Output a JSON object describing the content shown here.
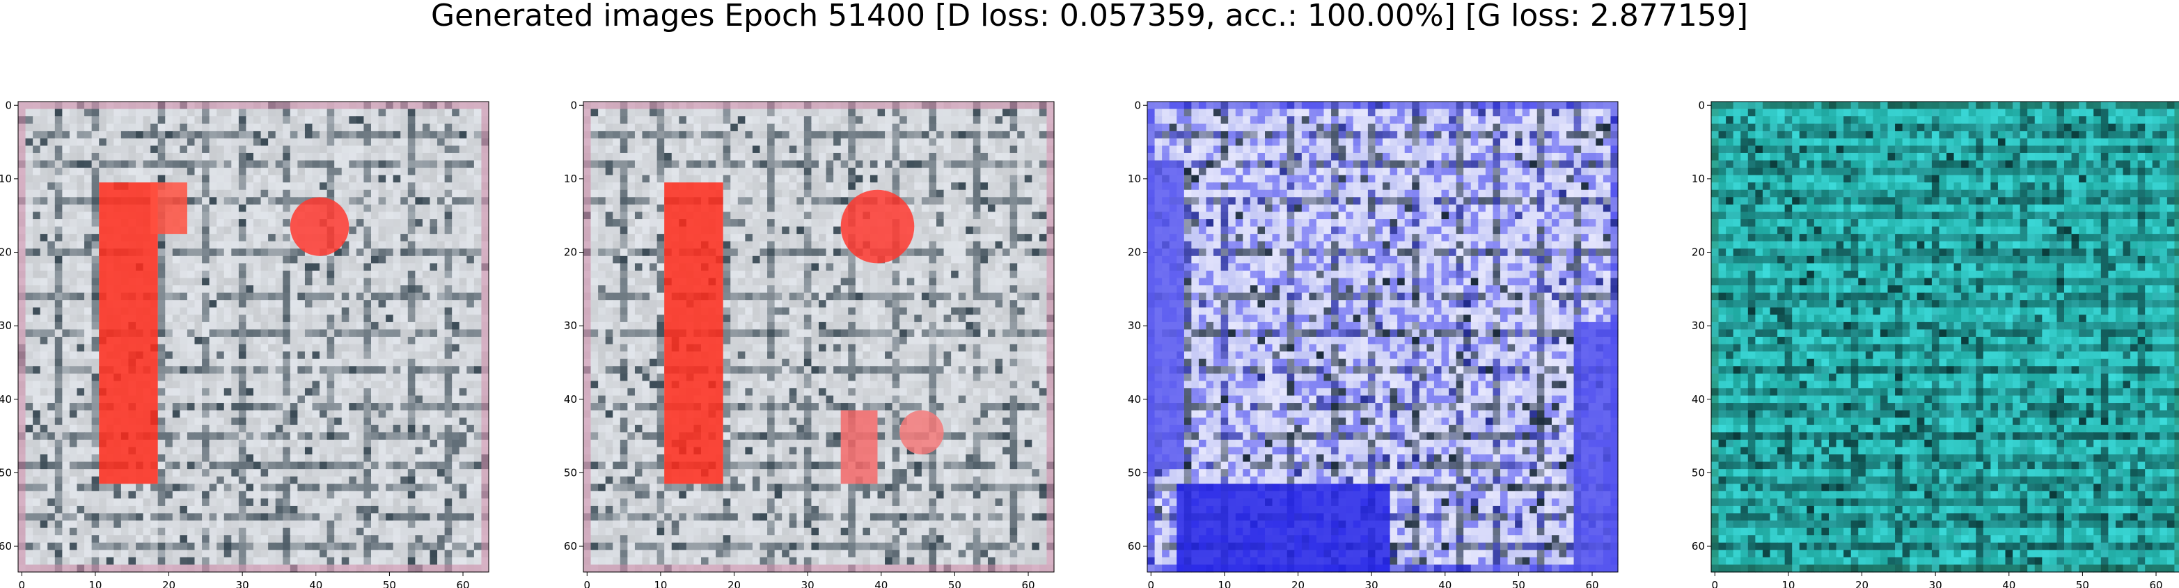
{
  "figure": {
    "title": "Generated images Epoch 51400 [D loss: 0.057359, acc.: 100.00%] [G loss: 2.877159]"
  },
  "axes": {
    "x_ticks": [
      "0",
      "10",
      "20",
      "30",
      "40",
      "50",
      "60"
    ],
    "y_ticks": [
      "0",
      "10",
      "20",
      "30",
      "40",
      "50",
      "60"
    ],
    "x_range": [
      0,
      64
    ],
    "y_range": [
      0,
      64
    ]
  },
  "panels": [
    {
      "id": "panel-1",
      "palette": {
        "base": "#c9ccd0",
        "light": "#e8ecf2",
        "dark": "#3a4a55",
        "accent": "#ff2a1a",
        "edge": "#d08aa8"
      },
      "blobs": [
        {
          "shape": "rect",
          "x0": 11,
          "x1": 19,
          "y0": 11,
          "y1": 52,
          "color": "#ff2a1a"
        },
        {
          "shape": "circle",
          "cx": 41,
          "cy": 17,
          "r": 4,
          "color": "#ff3a30"
        },
        {
          "shape": "rect",
          "x0": 18,
          "x1": 23,
          "y0": 11,
          "y1": 18,
          "color": "#ff5040"
        }
      ]
    },
    {
      "id": "panel-2",
      "palette": {
        "base": "#c9ccd0",
        "light": "#e8ecf2",
        "dark": "#3a4a55",
        "accent": "#ff2a1a",
        "edge": "#d08aa8"
      },
      "blobs": [
        {
          "shape": "rect",
          "x0": 11,
          "x1": 19,
          "y0": 11,
          "y1": 52,
          "color": "#ff2a1a"
        },
        {
          "shape": "circle",
          "cx": 40,
          "cy": 17,
          "r": 5,
          "color": "#ff3a30"
        },
        {
          "shape": "rect",
          "x0": 35,
          "x1": 40,
          "y0": 42,
          "y1": 52,
          "color": "#f46a6a"
        },
        {
          "shape": "circle",
          "cx": 46,
          "cy": 45,
          "r": 3,
          "color": "#f47a7a"
        }
      ]
    },
    {
      "id": "panel-3",
      "palette": {
        "base": "#c2c6f5",
        "light": "#f0f0ff",
        "dark": "#1a2a3a",
        "accent": "#2a2aee",
        "edge": "#3838e8"
      },
      "blobs": [
        {
          "shape": "rect",
          "x0": 4,
          "x1": 33,
          "y0": 52,
          "y1": 64,
          "color": "#2424e6"
        },
        {
          "shape": "rect",
          "x0": 0,
          "x1": 5,
          "y0": 8,
          "y1": 50,
          "color": "#5a5af0"
        },
        {
          "shape": "rect",
          "x0": 58,
          "x1": 64,
          "y0": 30,
          "y1": 64,
          "color": "#5050ee"
        }
      ]
    },
    {
      "id": "panel-4",
      "palette": {
        "base": "#1fa8a0",
        "light": "#3fe0e0",
        "dark": "#0a3a3a",
        "accent": "#18b8b0",
        "edge": "#2a8a6a"
      },
      "blobs": []
    }
  ]
}
